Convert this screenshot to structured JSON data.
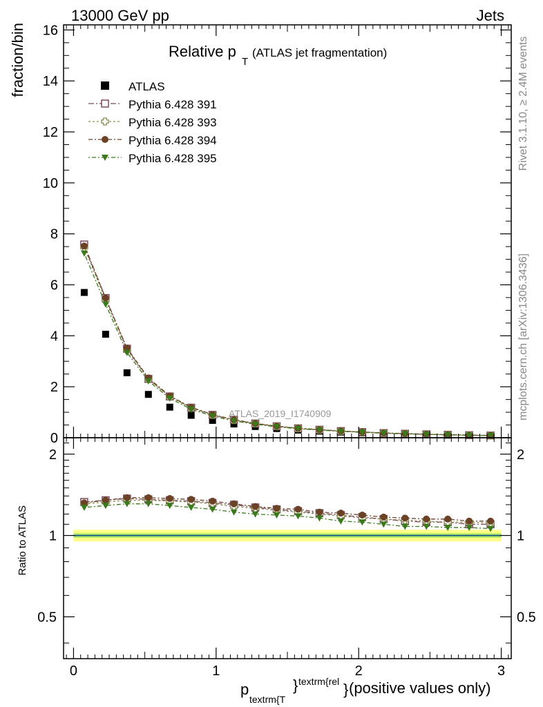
{
  "header": {
    "left": "13000 GeV pp",
    "right": "Jets"
  },
  "side": {
    "rivet": "Rivet 3.1.10, ≥ 2.4M events",
    "mcplots": "mcplots.cern.ch [arXiv:1306.3436]"
  },
  "colors": {
    "data": "#000000",
    "s391": "#7a4a5a",
    "s393": "#8a8a50",
    "s394": "#6b4226",
    "s395": "#3a7a1a",
    "band_outer": "#ffff88",
    "band_inner": "#b8ee66",
    "ref_line": "#1a5d8a"
  },
  "chart_data": {
    "type": "scatter",
    "title_main": "Relative p",
    "title_sub": "T",
    "title_rest": "(ATLAS jet fragmentation)",
    "ylabel": "fraction/bin",
    "ratio_ylabel": "Ratio to ATLAS",
    "xlabel": {
      "p": "p",
      "sub": "textrm{T",
      "sup": "textrm{rel",
      "brace1": "}",
      "brace2": "}",
      "rest": " (positive values only)"
    },
    "watermark": "ATLAS_2019_I1740909",
    "xlim": [
      -0.07,
      3.07
    ],
    "ylim": [
      0,
      16.2
    ],
    "ratio_ylim": [
      0.35,
      2.3
    ],
    "main_yticks": [
      0,
      2,
      4,
      6,
      8,
      10,
      12,
      14,
      16
    ],
    "main_ytick_labels": [
      "0",
      "2",
      "4",
      "6",
      "8",
      "10",
      "12",
      "14",
      "16"
    ],
    "ratio_yticks": [
      0.5,
      1,
      2
    ],
    "ratio_ytick_labels": [
      "0.5",
      "1",
      "2"
    ],
    "xticks": [
      0,
      1,
      2,
      3
    ],
    "xtick_labels": [
      "0",
      "1",
      "2",
      "3"
    ],
    "x": [
      0.075,
      0.225,
      0.375,
      0.525,
      0.675,
      0.825,
      0.975,
      1.125,
      1.275,
      1.425,
      1.575,
      1.725,
      1.875,
      2.025,
      2.175,
      2.325,
      2.475,
      2.625,
      2.775,
      2.925
    ],
    "data": {
      "name": "ATLAS",
      "values": [
        5.7,
        4.06,
        2.55,
        1.7,
        1.2,
        0.88,
        0.68,
        0.54,
        0.44,
        0.36,
        0.3,
        0.26,
        0.22,
        0.19,
        0.16,
        0.14,
        0.12,
        0.105,
        0.09,
        0.08
      ]
    },
    "series": [
      {
        "name": "Pythia 6.428 391",
        "key": "s391",
        "marker": "open-square",
        "ratio": [
          1.33,
          1.35,
          1.37,
          1.36,
          1.35,
          1.34,
          1.32,
          1.3,
          1.27,
          1.25,
          1.23,
          1.21,
          1.19,
          1.17,
          1.15,
          1.13,
          1.12,
          1.12,
          1.1,
          1.1
        ]
      },
      {
        "name": "Pythia 6.428 393",
        "key": "s393",
        "marker": "open-cross",
        "ratio": [
          1.31,
          1.33,
          1.35,
          1.35,
          1.34,
          1.33,
          1.31,
          1.28,
          1.26,
          1.24,
          1.22,
          1.2,
          1.18,
          1.16,
          1.15,
          1.14,
          1.13,
          1.12,
          1.12,
          1.11
        ]
      },
      {
        "name": "Pythia 6.428 394",
        "key": "s394",
        "marker": "filled-circle",
        "ratio": [
          1.32,
          1.35,
          1.38,
          1.38,
          1.37,
          1.36,
          1.34,
          1.31,
          1.28,
          1.26,
          1.25,
          1.22,
          1.21,
          1.19,
          1.17,
          1.16,
          1.15,
          1.15,
          1.13,
          1.13
        ]
      },
      {
        "name": "Pythia 6.428 395",
        "key": "s395",
        "marker": "filled-triangle-down",
        "ratio": [
          1.27,
          1.29,
          1.31,
          1.31,
          1.29,
          1.27,
          1.25,
          1.22,
          1.2,
          1.19,
          1.18,
          1.16,
          1.13,
          1.12,
          1.1,
          1.08,
          1.08,
          1.07,
          1.07,
          1.06
        ]
      }
    ],
    "band_outer": [
      0.95,
      1.05
    ],
    "band_inner": [
      0.98,
      1.02
    ],
    "grid": false,
    "legend_position": "top-left"
  }
}
